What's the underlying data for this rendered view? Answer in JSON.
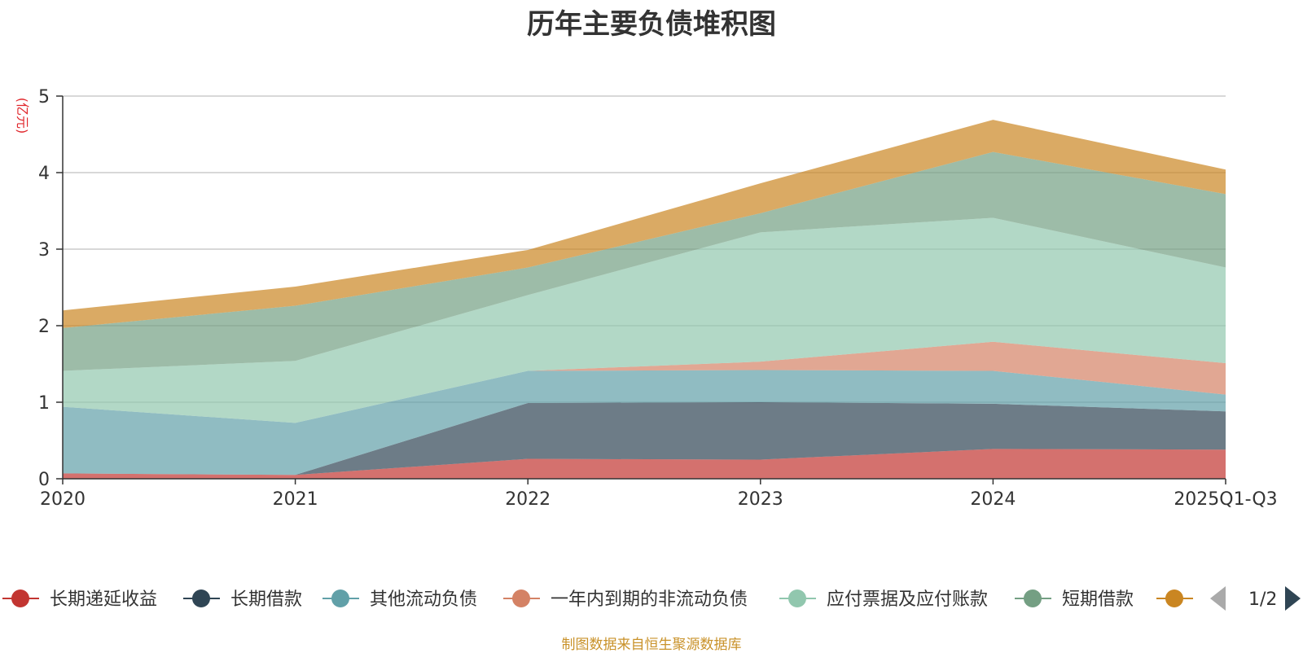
{
  "title": "历年主要负债堆积图",
  "source_note": "制图数据来自恒生聚源数据库",
  "chart_data": {
    "type": "area",
    "stacked": true,
    "title": "历年主要负债堆积图",
    "ylabel": "(亿元)",
    "xlabel": "",
    "categories": [
      "2020",
      "2021",
      "2022",
      "2023",
      "2024",
      "2025Q1-Q3"
    ],
    "ylim": [
      0,
      5
    ],
    "yticks": [
      0,
      1,
      2,
      3,
      4,
      5
    ],
    "grid": true,
    "series": [
      {
        "name": "长期递延收益",
        "color": "#c23531",
        "values": [
          0.07,
          0.05,
          0.26,
          0.25,
          0.39,
          0.38
        ]
      },
      {
        "name": "长期借款",
        "color": "#2f4554",
        "values": [
          0.0,
          0.0,
          0.73,
          0.75,
          0.59,
          0.5
        ]
      },
      {
        "name": "其他流动负债",
        "color": "#61a0a8",
        "values": [
          0.87,
          0.68,
          0.42,
          0.42,
          0.43,
          0.22
        ]
      },
      {
        "name": "一年内到期的非流动负债",
        "color": "#d48265",
        "values": [
          0.0,
          0.0,
          0.0,
          0.11,
          0.38,
          0.41
        ]
      },
      {
        "name": "应付票据及应付账款",
        "color": "#91c7ae",
        "values": [
          0.47,
          0.81,
          0.99,
          1.69,
          1.62,
          1.25
        ]
      },
      {
        "name": "短期借款",
        "color": "#749f83",
        "values": [
          0.56,
          0.72,
          0.36,
          0.25,
          0.86,
          0.96
        ]
      },
      {
        "name": "",
        "color": "#ca8622",
        "values": [
          0.23,
          0.25,
          0.23,
          0.39,
          0.42,
          0.32
        ]
      }
    ],
    "legend": {
      "position": "bottom",
      "page": "1/2"
    }
  }
}
